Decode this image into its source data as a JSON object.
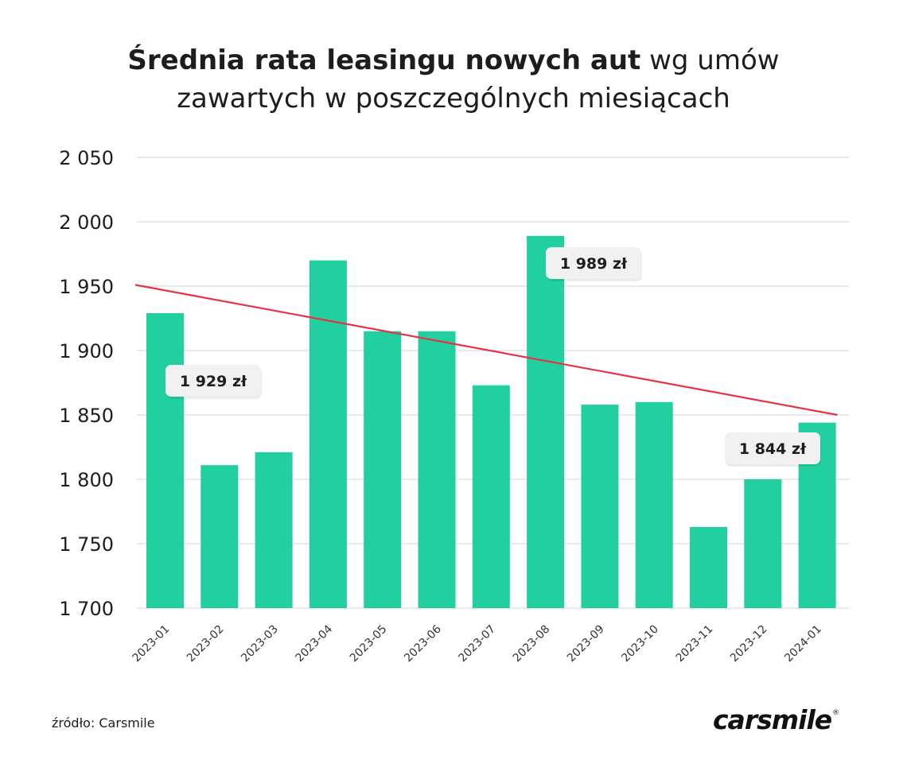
{
  "title": {
    "bold": "Średnia rata leasingu nowych aut",
    "rest_line1": " wg umów",
    "line2": "zawartych w poszczególnych miesiącach"
  },
  "source": "źródło: Carsmile",
  "logo": {
    "text": "carsmile",
    "mark": "®"
  },
  "colors": {
    "bar": "#22cfa0",
    "trend": "#e63343",
    "grid": "#dcdcdc",
    "callout_bg": "#f1f1f1"
  },
  "chart_data": {
    "type": "bar",
    "categories": [
      "2023-01",
      "2023-02",
      "2023-03",
      "2023-04",
      "2023-05",
      "2023-06",
      "2023-07",
      "2023-08",
      "2023-09",
      "2023-10",
      "2023-11",
      "2023-12",
      "2024-01"
    ],
    "values": [
      1929,
      1811,
      1821,
      1970,
      1915,
      1915,
      1873,
      1989,
      1858,
      1860,
      1763,
      1800,
      1844
    ],
    "ylim": [
      1700,
      2050
    ],
    "yticks": [
      1700,
      1750,
      1800,
      1850,
      1900,
      1950,
      2000,
      2050
    ],
    "ytick_labels": [
      "1 700",
      "1 750",
      "1 800",
      "1 850",
      "1 900",
      "1 950",
      "2 000",
      "2 050"
    ],
    "grid": true,
    "trend_line": {
      "start": 1951,
      "end": 1850
    },
    "callouts": [
      {
        "category": "2023-01",
        "value": 1929,
        "label": "1 929 zł"
      },
      {
        "category": "2023-08",
        "value": 1989,
        "label": "1 989 zł"
      },
      {
        "category": "2024-01",
        "value": 1844,
        "label": "1 844 zł"
      }
    ]
  }
}
